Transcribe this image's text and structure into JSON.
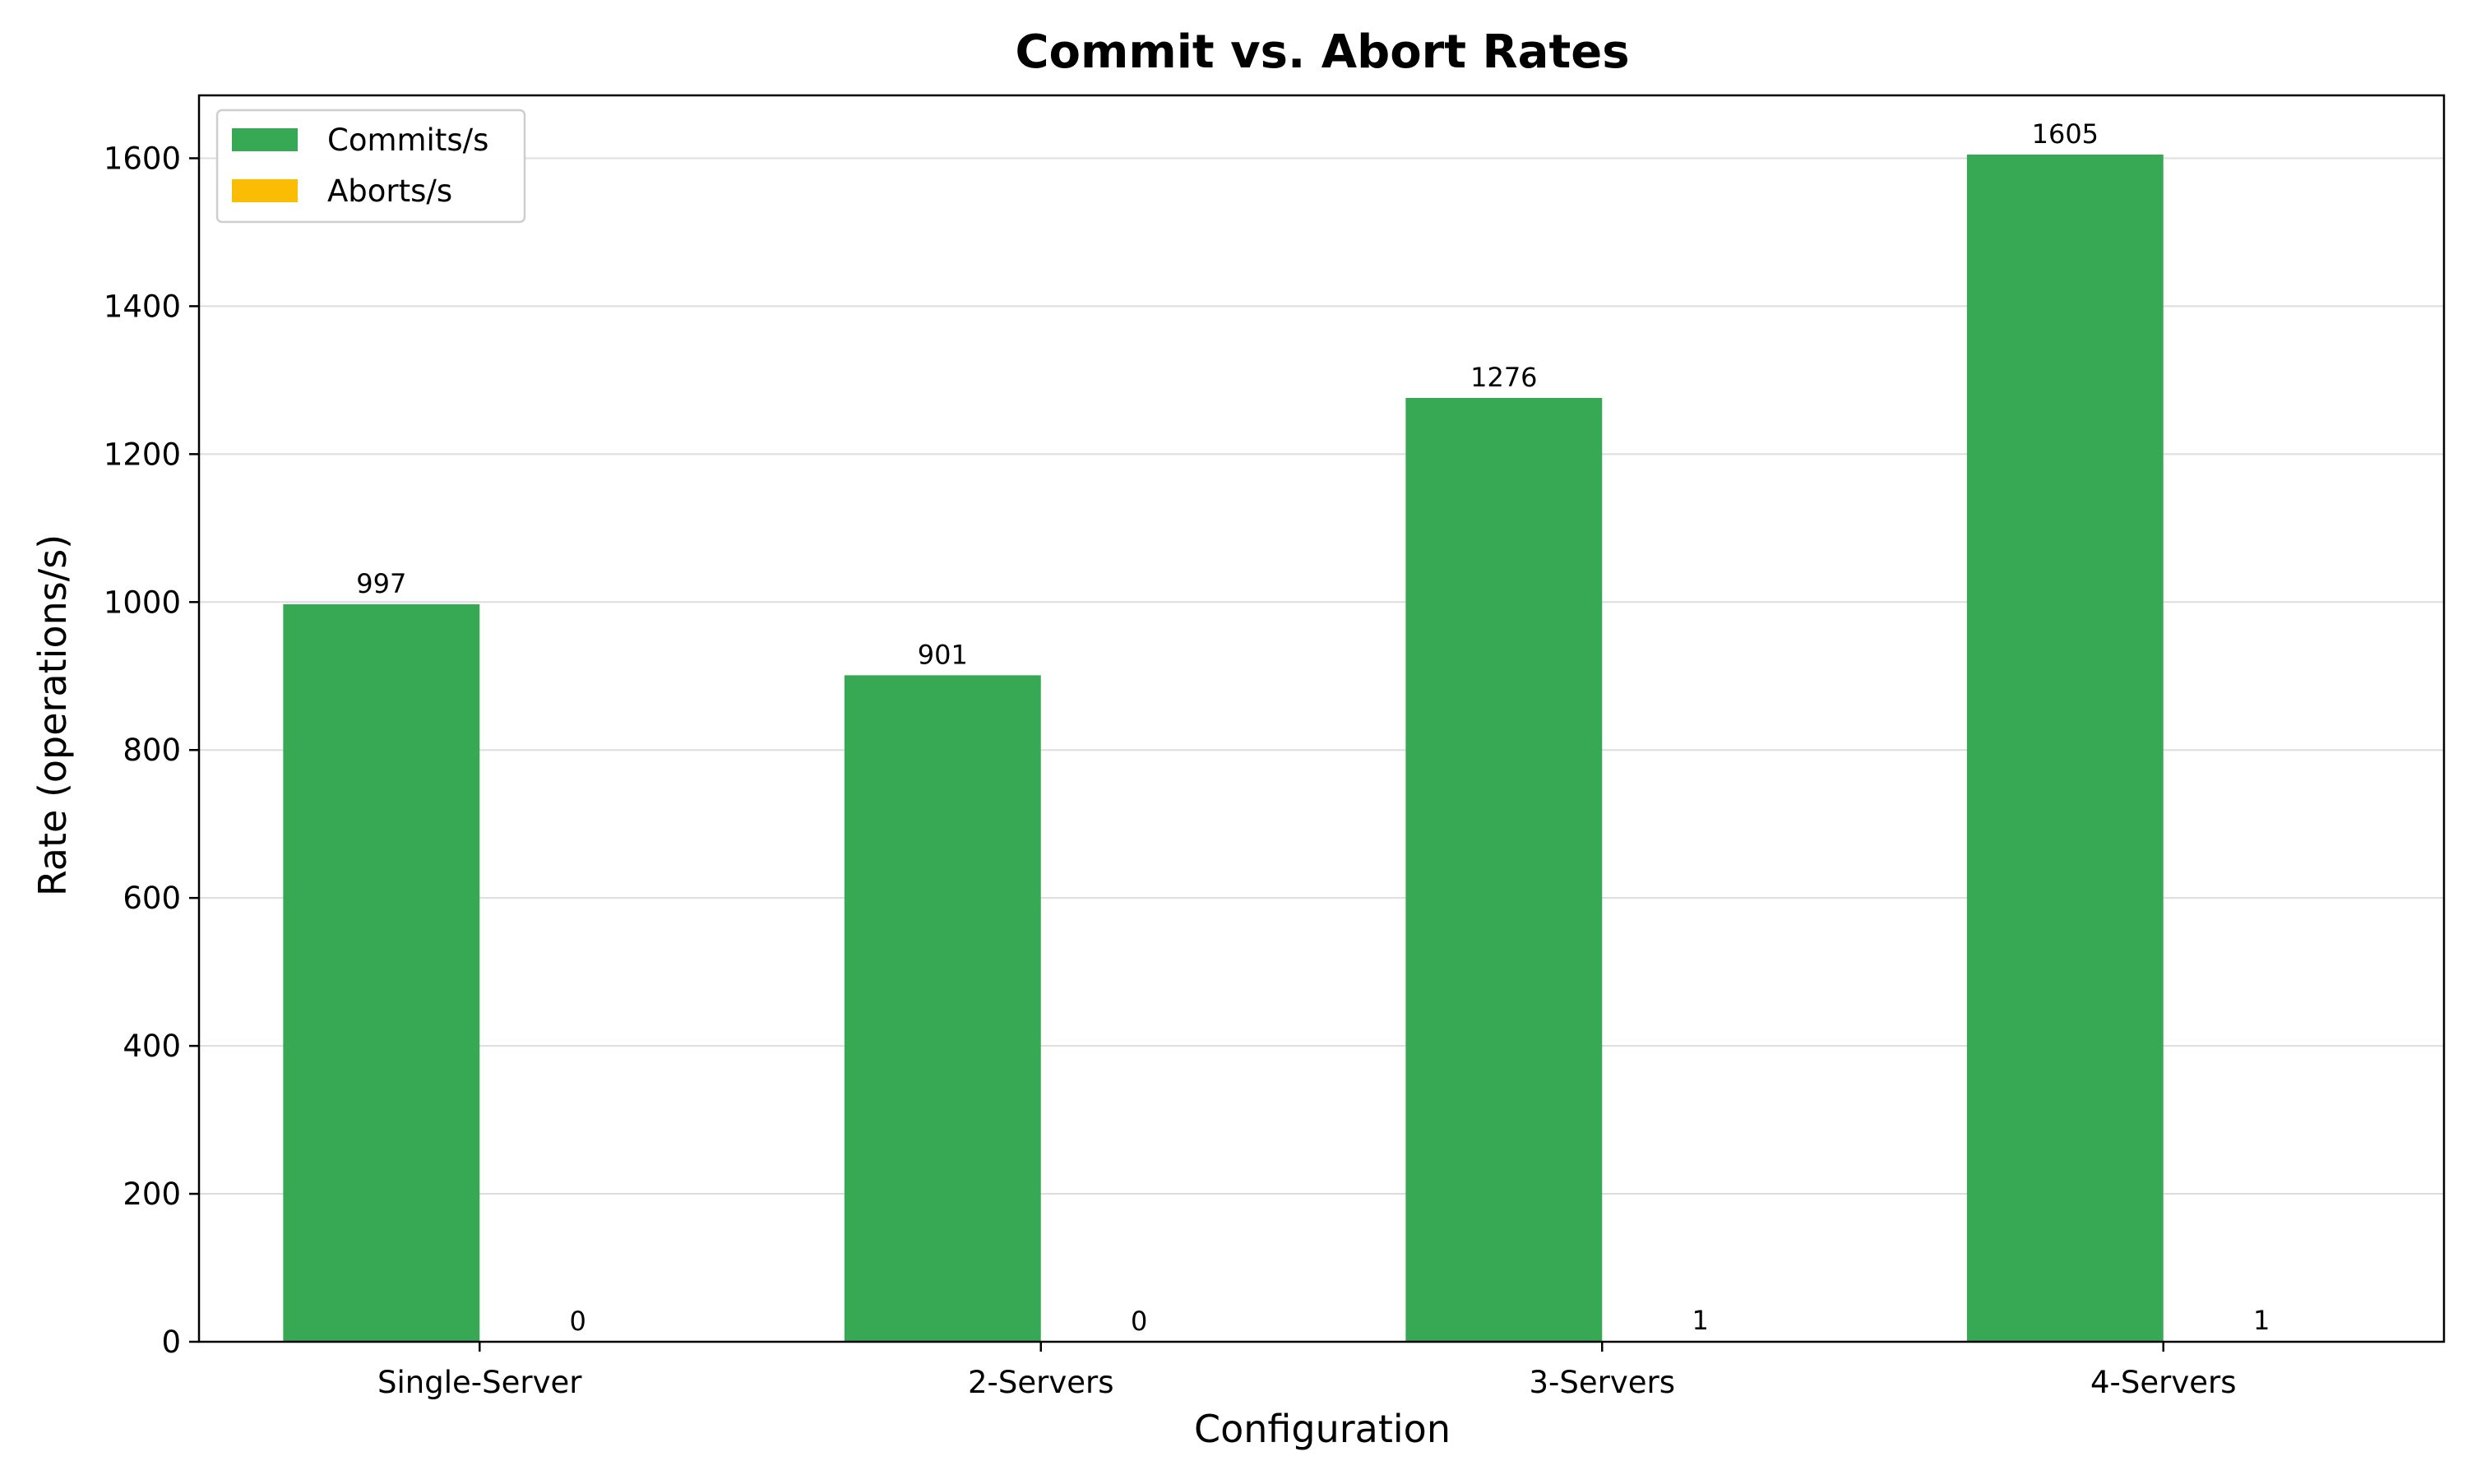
{
  "chart_data": {
    "type": "bar",
    "title": "Commit vs. Abort Rates",
    "xlabel": "Configuration",
    "ylabel": "Rate (operations/s)",
    "categories": [
      "Single-Server",
      "2-Servers",
      "3-Servers",
      "4-Servers"
    ],
    "series": [
      {
        "name": "Commits/s",
        "values": [
          997,
          901,
          1276,
          1605
        ],
        "color": "#37a853"
      },
      {
        "name": "Aborts/s",
        "values": [
          0,
          0,
          1,
          1
        ],
        "color": "#fbbc04"
      }
    ],
    "ylim": [
      0,
      1685
    ],
    "yticks": [
      0,
      200,
      400,
      600,
      800,
      1000,
      1200,
      1400,
      1600
    ],
    "grid": "horizontal",
    "legend": "top-left",
    "data_labels": true
  }
}
